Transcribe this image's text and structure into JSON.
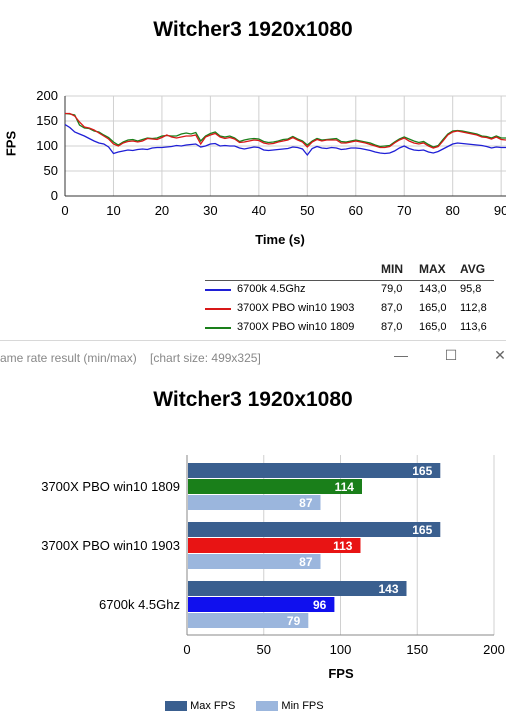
{
  "window": {
    "caption": "ame rate result (min/max)",
    "size_label": "[chart size: 499x325]",
    "minimize_glyph": "—",
    "maximize_glyph": "☐",
    "close_glyph": "✕"
  },
  "colors": {
    "blue": "#1f1fd6",
    "red": "#d81818",
    "green": "#1a7f1a",
    "max_bar": "#3a5f8f",
    "min_bar": "#9bb6dd",
    "grid": "#d0d0d0"
  },
  "chart_data": [
    {
      "type": "line",
      "title": "Witcher3 1920x1080",
      "xlabel": "Time (s)",
      "ylabel": "FPS",
      "xlim": [
        0,
        91
      ],
      "ylim": [
        0,
        200
      ],
      "xticks": [
        0,
        10,
        20,
        30,
        40,
        50,
        60,
        70,
        80,
        90
      ],
      "yticks": [
        0,
        50,
        100,
        150,
        200
      ],
      "x": [
        0,
        1,
        2,
        3,
        4,
        5,
        6,
        7,
        8,
        9,
        10,
        11,
        12,
        13,
        14,
        15,
        16,
        17,
        18,
        19,
        20,
        21,
        22,
        23,
        24,
        25,
        26,
        27,
        28,
        29,
        30,
        31,
        32,
        33,
        34,
        35,
        36,
        37,
        38,
        39,
        40,
        41,
        42,
        43,
        44,
        45,
        46,
        47,
        48,
        49,
        50,
        51,
        52,
        53,
        54,
        55,
        56,
        57,
        58,
        59,
        60,
        61,
        62,
        63,
        64,
        65,
        66,
        67,
        68,
        69,
        70,
        71,
        72,
        73,
        74,
        75,
        76,
        77,
        78,
        79,
        80,
        81,
        82,
        83,
        84,
        85,
        86,
        87,
        88,
        89,
        90,
        91
      ],
      "series": [
        {
          "name": "6700k 4.5Ghz",
          "color": "#1f1fd6",
          "values": [
            143,
            137,
            128,
            124,
            120,
            115,
            110,
            106,
            104,
            98,
            85,
            88,
            90,
            92,
            91,
            93,
            94,
            93,
            96,
            97,
            97,
            98,
            99,
            101,
            100,
            102,
            103,
            104,
            98,
            100,
            104,
            105,
            100,
            101,
            100,
            100,
            96,
            94,
            96,
            98,
            97,
            92,
            91,
            92,
            93,
            94,
            95,
            98,
            97,
            94,
            82,
            95,
            99,
            96,
            95,
            97,
            96,
            93,
            94,
            96,
            96,
            95,
            93,
            91,
            88,
            86,
            85,
            86,
            90,
            96,
            100,
            95,
            92,
            91,
            92,
            88,
            86,
            89,
            94,
            99,
            104,
            106,
            105,
            104,
            103,
            102,
            101,
            99,
            96,
            98,
            97,
            97
          ]
        },
        {
          "name": "3700X PBO win10 1903",
          "color": "#d81818",
          "values": [
            165,
            165,
            160,
            148,
            138,
            136,
            132,
            126,
            120,
            114,
            104,
            100,
            106,
            109,
            110,
            108,
            110,
            115,
            114,
            113,
            117,
            122,
            118,
            116,
            118,
            120,
            120,
            122,
            104,
            118,
            122,
            125,
            118,
            115,
            117,
            114,
            107,
            108,
            110,
            112,
            111,
            106,
            104,
            105,
            108,
            110,
            112,
            117,
            112,
            108,
            98,
            108,
            113,
            110,
            112,
            112,
            112,
            106,
            106,
            108,
            110,
            108,
            106,
            103,
            100,
            97,
            97,
            99,
            106,
            112,
            116,
            110,
            106,
            104,
            106,
            100,
            96,
            99,
            110,
            122,
            128,
            130,
            128,
            126,
            124,
            122,
            118,
            117,
            114,
            118,
            113,
            112
          ]
        },
        {
          "name": "3700X PBO win10 1809",
          "color": "#1a7f1a",
          "values": [
            165,
            164,
            162,
            142,
            136,
            135,
            130,
            128,
            122,
            117,
            108,
            102,
            108,
            112,
            113,
            110,
            113,
            116,
            115,
            116,
            120,
            121,
            120,
            120,
            124,
            126,
            124,
            127,
            110,
            120,
            125,
            128,
            120,
            118,
            120,
            116,
            109,
            112,
            114,
            115,
            114,
            109,
            107,
            108,
            110,
            113,
            114,
            119,
            114,
            110,
            102,
            110,
            115,
            112,
            113,
            114,
            115,
            109,
            108,
            110,
            112,
            110,
            108,
            106,
            102,
            99,
            100,
            101,
            108,
            114,
            118,
            114,
            110,
            107,
            109,
            103,
            98,
            101,
            113,
            124,
            130,
            131,
            130,
            128,
            126,
            124,
            120,
            119,
            116,
            120,
            116,
            116
          ]
        }
      ],
      "stats_table": {
        "headers": [
          "MIN",
          "MAX",
          "AVG"
        ],
        "rows": [
          {
            "name": "6700k 4.5Ghz",
            "color": "#1f1fd6",
            "min": "79,0",
            "max": "143,0",
            "avg": "95,8"
          },
          {
            "name": "3700X PBO win10 1903",
            "color": "#d81818",
            "min": "87,0",
            "max": "165,0",
            "avg": "112,8"
          },
          {
            "name": "3700X PBO win10 1809",
            "color": "#1a7f1a",
            "min": "87,0",
            "max": "165,0",
            "avg": "113,6"
          }
        ]
      }
    },
    {
      "type": "bar",
      "orientation": "horizontal",
      "title": "Witcher3 1920x1080",
      "xlabel": "FPS",
      "xlim": [
        0,
        200
      ],
      "xticks": [
        0,
        50,
        100,
        150,
        200
      ],
      "categories": [
        "3700X PBO win10 1809",
        "3700X PBO win10 1903",
        "6700k 4.5Ghz"
      ],
      "groups": [
        {
          "category": "3700X PBO win10 1809",
          "max": 165,
          "avg": 114,
          "min": 87,
          "avg_color": "#1a7f1a"
        },
        {
          "category": "3700X PBO win10 1903",
          "max": 165,
          "avg": 113,
          "min": 87,
          "avg_color": "#e81414"
        },
        {
          "category": "6700k 4.5Ghz",
          "max": 143,
          "avg": 96,
          "min": 79,
          "avg_color": "#1010ee"
        }
      ],
      "legend": [
        {
          "name": "Max FPS",
          "color": "#3a5f8f"
        },
        {
          "name": "Min FPS",
          "color": "#9bb6dd"
        }
      ],
      "legend_position": "bottom-center"
    }
  ]
}
